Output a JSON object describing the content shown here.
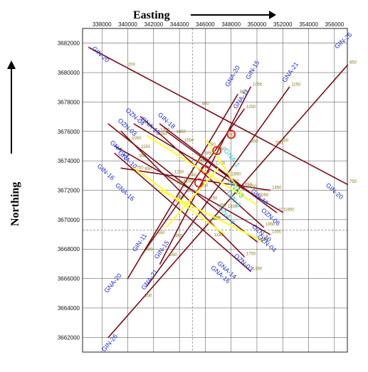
{
  "map": {
    "x_axis_title": "Easting",
    "y_axis_title": "Northing",
    "x_ticks": [
      "338000",
      "340000",
      "342000",
      "344000",
      "346000",
      "348000",
      "350000",
      "352000",
      "354000",
      "356000"
    ],
    "y_ticks": [
      "3682000",
      "3680000",
      "3678000",
      "3676000",
      "3674000",
      "3672000",
      "3670000",
      "3668000",
      "3666000",
      "3664000",
      "3662000"
    ],
    "colors": {
      "profile_line": "#7a0f14",
      "line_label": "#1c2bd6",
      "highlight_line": "#ffff33",
      "anomaly_circle": "#e02020",
      "cyan_label": "#33cccc",
      "station_label": "#8a7a10",
      "grid": "#444444"
    }
  },
  "profiles": [
    {
      "name": "GIN-20",
      "start": "GIN-20",
      "end": "GIN-20",
      "x1": 337000,
      "y1": 3681700,
      "x2": 357000,
      "y2": 3672400
    },
    {
      "name": "GIN-26",
      "start": "GIN-26",
      "end": "GIN-26",
      "x1": 338500,
      "y1": 3662000,
      "x2": 357000,
      "y2": 3680500
    },
    {
      "name": "GNA-20",
      "start": "GNA-20",
      "end": "GNA-20",
      "x1": 340000,
      "y1": 3666000,
      "x2": 348500,
      "y2": 3678500
    },
    {
      "name": "GIN-15",
      "start": "GIN-15",
      "end": "GIN-15",
      "x1": 342500,
      "y1": 3667000,
      "x2": 349500,
      "y2": 3679000
    },
    {
      "name": "GNA-21",
      "start": "GNA-21",
      "end": "GNA-21",
      "x1": 341500,
      "y1": 3665500,
      "x2": 352500,
      "y2": 3679000
    },
    {
      "name": "GNA-11",
      "start": "GNA-11",
      "end": "GNA-11",
      "x1": 341000,
      "y1": 3667500,
      "x2": 349000,
      "y2": 3677500
    },
    {
      "name": "GNA-16",
      "start": "GNA-16",
      "end": "GNA-16",
      "x1": 339000,
      "y1": 3674500,
      "x2": 349500,
      "y2": 3666500
    },
    {
      "name": "GIN-16",
      "start": "GIN-16",
      "end": "GIN-16",
      "x1": 339500,
      "y1": 3673500,
      "x2": 351000,
      "y2": 3672000
    },
    {
      "name": "GNA-10",
      "start": "GNA-10",
      "end": "GNA-10",
      "x1": 339000,
      "y1": 3675000,
      "x2": 351000,
      "y2": 3669000
    },
    {
      "name": "GNA-14",
      "start": "GNA-14",
      "end": "GNA-14",
      "x1": 338500,
      "y1": 3676500,
      "x2": 350000,
      "y2": 3668500
    },
    {
      "name": "OZN-03",
      "start": "OZN-03",
      "end": "OZN-03",
      "x1": 339500,
      "y1": 3676000,
      "x2": 349000,
      "y2": 3667500
    },
    {
      "name": "OZN-06",
      "start": "OZN-06",
      "end": "OZN-06",
      "x1": 340500,
      "y1": 3676500,
      "x2": 352000,
      "y2": 3670500
    },
    {
      "name": "OZN-04",
      "start": "OZN-04",
      "end": "OZN-04",
      "x1": 341000,
      "y1": 3677000,
      "x2": 350500,
      "y2": 3669500
    },
    {
      "name": "GNA-19",
      "start": "GNA-19",
      "end": "GNA-19",
      "x1": 342500,
      "y1": 3676500,
      "x2": 350000,
      "y2": 3671500
    },
    {
      "name": "GIN-18",
      "start": "GIN-18",
      "end": "GIN-18",
      "x1": 343000,
      "y1": 3676000,
      "x2": 351500,
      "y2": 3670500
    }
  ],
  "line_labels": [
    {
      "text": "GIN-20",
      "x": 337200,
      "y": 3681600,
      "rot": 42
    },
    {
      "text": "GIN-26",
      "x": 356200,
      "y": 3681600,
      "rot": -42
    },
    {
      "text": "GNA-20",
      "x": 347800,
      "y": 3679000,
      "rot": -60
    },
    {
      "text": "GIN-15",
      "x": 349400,
      "y": 3679500,
      "rot": -60
    },
    {
      "text": "GNA-21",
      "x": 352200,
      "y": 3679300,
      "rot": -55
    },
    {
      "text": "GNA-11",
      "x": 348400,
      "y": 3677500,
      "rot": -55
    },
    {
      "text": "OZN-03",
      "x": 339200,
      "y": 3676700,
      "rot": 42
    },
    {
      "text": "OZN-04",
      "x": 339800,
      "y": 3677400,
      "rot": 42
    },
    {
      "text": "GNA-19",
      "x": 341000,
      "y": 3676800,
      "rot": 42
    },
    {
      "text": "GIN-18",
      "x": 342300,
      "y": 3677100,
      "rot": 42
    },
    {
      "text": "GNA-14",
      "x": 338600,
      "y": 3675200,
      "rot": 42
    },
    {
      "text": "GNA-10",
      "x": 339200,
      "y": 3674500,
      "rot": 42
    },
    {
      "text": "GIN-16",
      "x": 337600,
      "y": 3673600,
      "rot": 42
    },
    {
      "text": "GNA-16",
      "x": 339000,
      "y": 3672300,
      "rot": 42
    },
    {
      "text": "GIN-20",
      "x": 355300,
      "y": 3672300,
      "rot": 42
    },
    {
      "text": "GIN-16",
      "x": 349500,
      "y": 3671900,
      "rot": 42
    },
    {
      "text": "OZN-06",
      "x": 350300,
      "y": 3670600,
      "rot": 42
    },
    {
      "text": "OZN-10",
      "x": 349600,
      "y": 3669500,
      "rot": 42
    },
    {
      "text": "OZN-04",
      "x": 350000,
      "y": 3668800,
      "rot": 42
    },
    {
      "text": "OZN-03",
      "x": 348200,
      "y": 3667500,
      "rot": 42
    },
    {
      "text": "GNA-14",
      "x": 346900,
      "y": 3667000,
      "rot": 42
    },
    {
      "text": "GNA-16",
      "x": 346400,
      "y": 3666700,
      "rot": 42
    },
    {
      "text": "GIN-11",
      "x": 340600,
      "y": 3667800,
      "rot": -55
    },
    {
      "text": "GIN-15",
      "x": 342300,
      "y": 3667300,
      "rot": -55
    },
    {
      "text": "GNA-21",
      "x": 341300,
      "y": 3665200,
      "rot": -55
    },
    {
      "text": "GNA-20",
      "x": 338400,
      "y": 3665000,
      "rot": -50
    },
    {
      "text": "GIN-26",
      "x": 338200,
      "y": 3661000,
      "rot": -50
    }
  ],
  "yellow_segments": [
    {
      "x1": 341500,
      "y1": 3675700,
      "x2": 350000,
      "y2": 3671000
    },
    {
      "x1": 342500,
      "y1": 3672000,
      "x2": 350500,
      "y2": 3668500
    },
    {
      "x1": 340500,
      "y1": 3673500,
      "x2": 347500,
      "y2": 3669000
    },
    {
      "x1": 346000,
      "y1": 3675500,
      "x2": 349000,
      "y2": 3671500
    },
    {
      "x1": 343000,
      "y1": 3669500,
      "x2": 347000,
      "y2": 3673500
    }
  ],
  "cyan_labels": [
    {
      "text": "GNA-1",
      "x": 347400,
      "y": 3674700,
      "rot": 52
    },
    {
      "text": "GNA-3",
      "x": 347700,
      "y": 3672600,
      "rot": 52
    },
    {
      "text": "GIN-5",
      "x": 347600,
      "y": 3671800,
      "rot": 52
    },
    {
      "text": "GNA-4",
      "x": 347000,
      "y": 3670800,
      "rot": 52
    }
  ],
  "anomalies": [
    {
      "x": 348000,
      "y": 3675800
    },
    {
      "x": 346900,
      "y": 3674700
    },
    {
      "x": 346000,
      "y": 3673400
    },
    {
      "x": 345500,
      "y": 3672500
    }
  ],
  "station_labels": [
    "101",
    "200",
    "300",
    "400",
    "450",
    "550",
    "650",
    "750",
    "850",
    "950",
    "1050",
    "1150",
    "1250",
    "1350",
    "1450",
    "1550",
    "1650",
    "1750",
    "1850",
    "1950",
    "2050"
  ]
}
